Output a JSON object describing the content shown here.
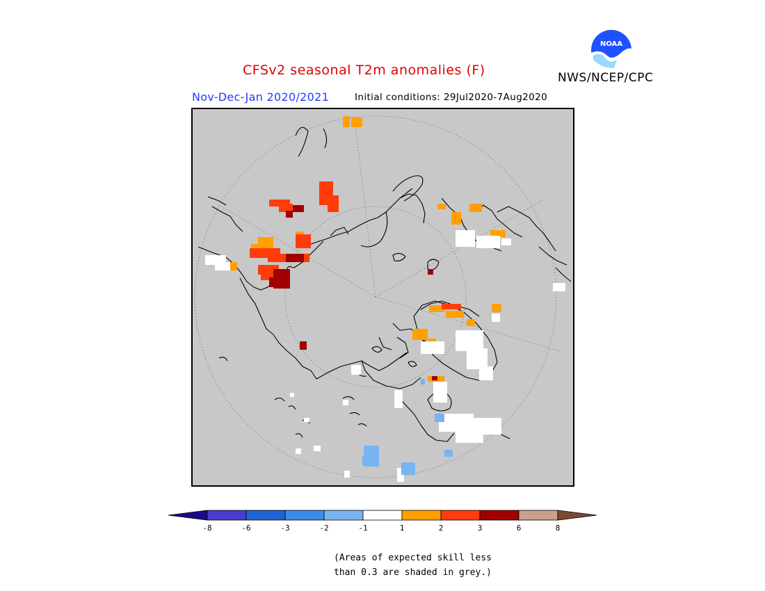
{
  "header": {
    "title": "CFSv2 seasonal T2m anomalies (F)",
    "organization": "NWS/NCEP/CPC",
    "period": "Nov-Dec-Jan 2020/2021",
    "initial_conditions": "Initial conditions: 29Jul2020-7Aug2020",
    "logo_text": "NOAA"
  },
  "map": {
    "projection": "north-polar-stereographic",
    "background_color": "#c8c8c8",
    "coastline_color": "#000000",
    "graticule": "dotted"
  },
  "legend": {
    "labels": [
      "-8",
      "-6",
      "-3",
      "-2",
      "-1",
      "1",
      "2",
      "3",
      "6",
      "8"
    ],
    "colors": [
      "#1a0a8c",
      "#4a3ccc",
      "#1e64d2",
      "#3c8ce6",
      "#78b4f0",
      "#ffffff",
      "#ffa000",
      "#ff3c0a",
      "#a00000",
      "#c8a08c",
      "#7a4a32"
    ]
  },
  "note": {
    "line1": "(Areas of expected skill less",
    "line2": "than 0.3 are shaded in grey.)"
  }
}
